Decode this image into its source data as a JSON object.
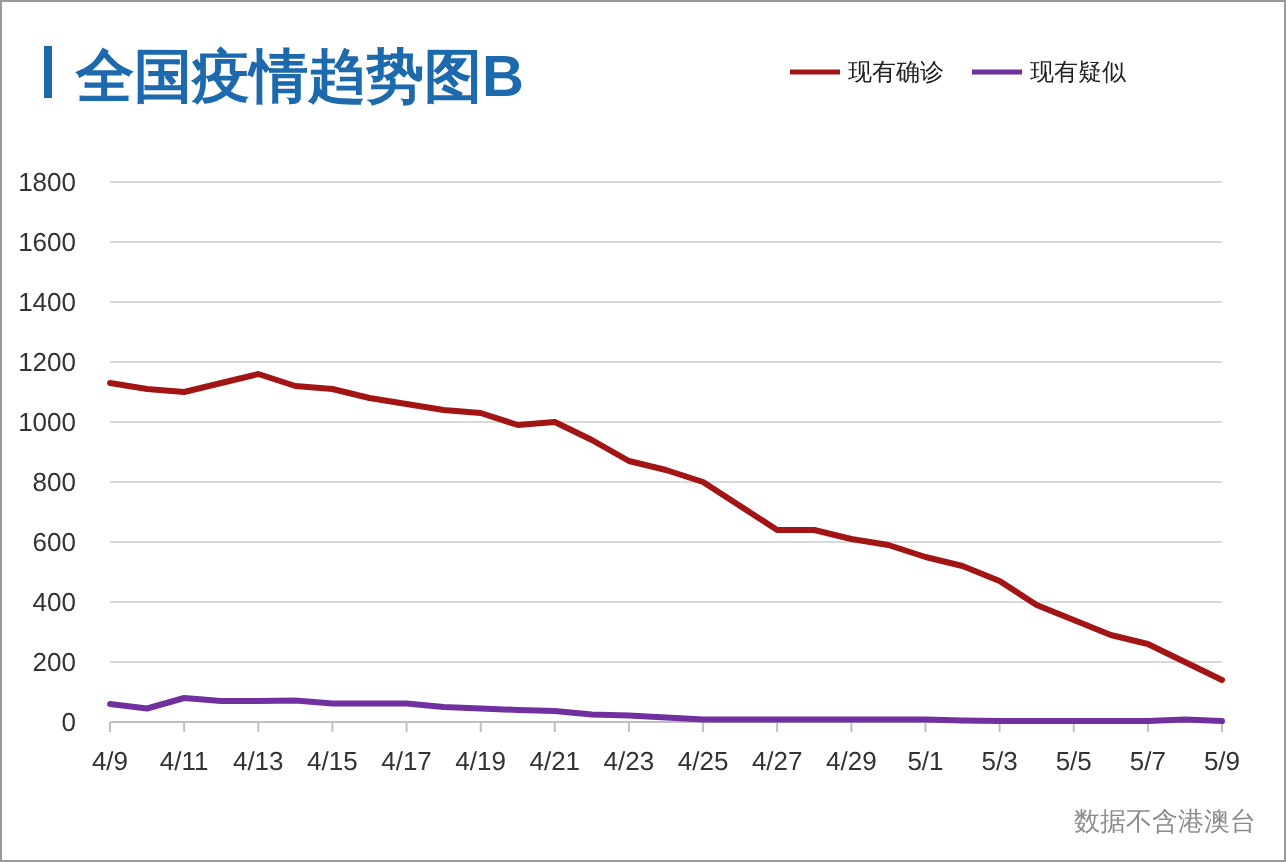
{
  "chart_data": {
    "type": "line",
    "title": "全国疫情趋势图B",
    "x": [
      "--04-09",
      "--04-10",
      "--04-11",
      "--04-12",
      "--04-13",
      "--04-14",
      "--04-15",
      "--04-16",
      "--04-17",
      "--04-18",
      "--04-19",
      "--04-20",
      "--04-21",
      "--04-22",
      "--04-23",
      "--04-24",
      "--04-25",
      "--04-26",
      "--04-27",
      "--04-28",
      "--04-29",
      "--04-30",
      "--05-01",
      "--05-02",
      "--05-03",
      "--05-04",
      "--05-05",
      "--05-06",
      "--05-07",
      "--05-08",
      "--05-09"
    ],
    "series": [
      {
        "name": "现有确诊",
        "color": "#a31515",
        "values": [
          1130,
          1110,
          1100,
          1130,
          1160,
          1120,
          1110,
          1080,
          1060,
          1040,
          1030,
          990,
          1000,
          940,
          870,
          840,
          800,
          720,
          640,
          640,
          610,
          590,
          550,
          520,
          470,
          390,
          340,
          290,
          260,
          200,
          140
        ]
      },
      {
        "name": "现有疑似",
        "color": "#7030a0",
        "values": [
          60,
          45,
          80,
          70,
          70,
          72,
          62,
          62,
          62,
          50,
          45,
          40,
          37,
          25,
          22,
          15,
          8,
          8,
          8,
          8,
          8,
          8,
          8,
          5,
          3,
          3,
          3,
          3,
          3,
          8,
          3
        ]
      }
    ],
    "xlim": [
      "--04-09",
      "--05-09"
    ],
    "xticks": [
      {
        "value": "--04-09",
        "label": "4/9"
      },
      {
        "value": "--04-11",
        "label": "4/11"
      },
      {
        "value": "--04-13",
        "label": "4/13"
      },
      {
        "value": "--04-15",
        "label": "4/15"
      },
      {
        "value": "--04-17",
        "label": "4/17"
      },
      {
        "value": "--04-19",
        "label": "4/19"
      },
      {
        "value": "--04-21",
        "label": "4/21"
      },
      {
        "value": "--04-23",
        "label": "4/23"
      },
      {
        "value": "--04-25",
        "label": "4/25"
      },
      {
        "value": "--04-27",
        "label": "4/27"
      },
      {
        "value": "--04-29",
        "label": "4/29"
      },
      {
        "value": "--05-01",
        "label": "5/1"
      },
      {
        "value": "--05-03",
        "label": "5/3"
      },
      {
        "value": "--05-05",
        "label": "5/5"
      },
      {
        "value": "--05-07",
        "label": "5/7"
      },
      {
        "value": "--05-09",
        "label": "5/9"
      }
    ],
    "ylim": [
      0,
      1800
    ],
    "yticks": [
      0,
      200,
      400,
      600,
      800,
      1000,
      1200,
      1400,
      1600,
      1800
    ],
    "grid": "y",
    "legend": "top right",
    "line_style": "solid",
    "annotations": [
      "数据不含港澳台"
    ]
  }
}
